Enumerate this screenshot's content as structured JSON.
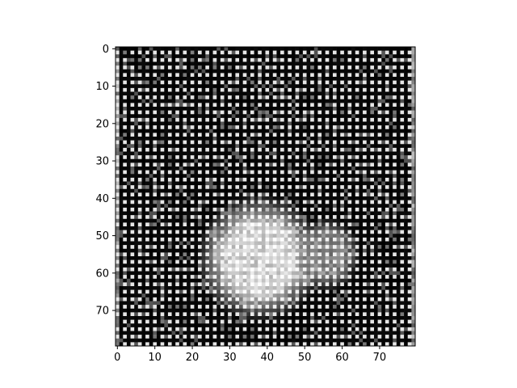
{
  "chart_data": {
    "type": "heatmap",
    "colormap": "gray",
    "rows": 80,
    "cols": 80,
    "xlim": [
      0,
      79
    ],
    "ylim": [
      79,
      0
    ],
    "x_ticks": [
      0,
      10,
      20,
      30,
      40,
      50,
      60,
      70
    ],
    "y_ticks": [
      0,
      10,
      20,
      30,
      40,
      50,
      60,
      70
    ],
    "x_tick_labels": [
      "0",
      "10",
      "20",
      "30",
      "40",
      "50",
      "60",
      "70"
    ],
    "y_tick_labels": [
      "0",
      "10",
      "20",
      "30",
      "40",
      "50",
      "60",
      "70"
    ],
    "title": "",
    "xlabel": "",
    "ylabel": "",
    "pattern": {
      "description_values": "grid texture: dark background with bright checkered cells",
      "grid_period": 2,
      "background_level": 0.05,
      "cell_level": 0.9,
      "bright_blob": {
        "center_col": 38,
        "center_row": 56,
        "radius_col": 17,
        "radius_row": 17,
        "level": 0.92
      },
      "secondary_blob": {
        "center_col": 56,
        "center_row": 55,
        "radius_col": 9,
        "radius_row": 10,
        "level": 0.65
      }
    }
  }
}
